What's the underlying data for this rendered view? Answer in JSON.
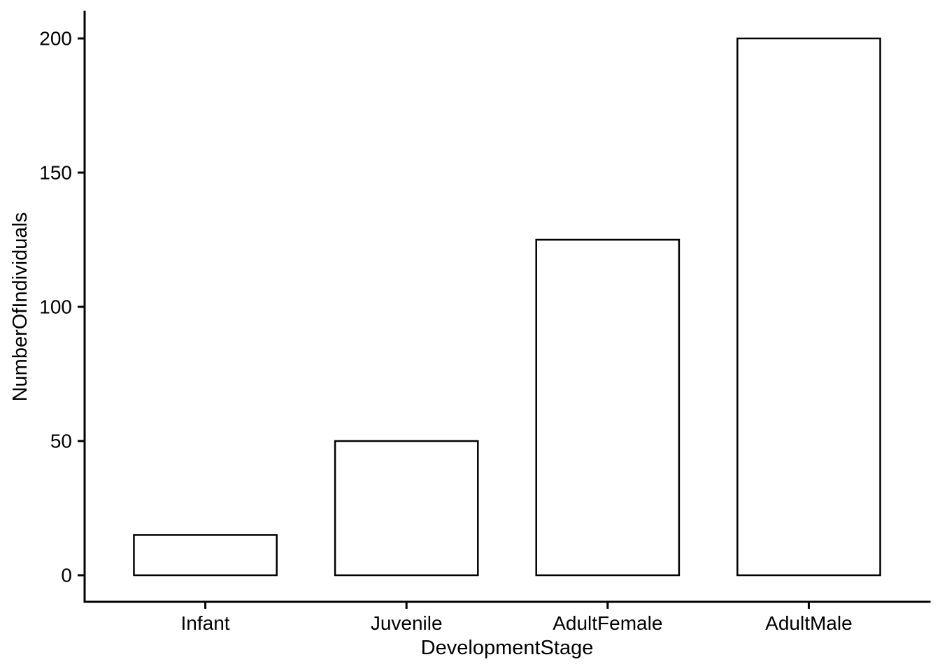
{
  "chart_data": {
    "type": "bar",
    "categories": [
      "Infant",
      "Juvenile",
      "AdultFemale",
      "AdultMale"
    ],
    "values": [
      15,
      50,
      125,
      200
    ],
    "title": "",
    "xlabel": "DevelopmentStage",
    "ylabel": "NumberOfIndividuals",
    "ylim": [
      0,
      200
    ],
    "yticks": [
      0,
      50,
      100,
      150,
      200
    ],
    "legend": "none",
    "grid": false,
    "colors": {
      "background": "#ffffff",
      "bar_fill": "#ffffff",
      "bar_stroke": "#000000",
      "axis": "#000000",
      "text": "#000000"
    }
  }
}
